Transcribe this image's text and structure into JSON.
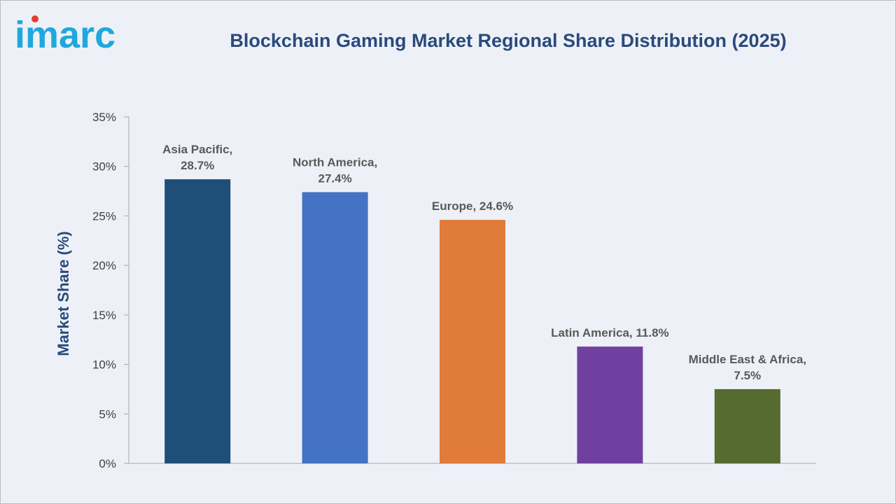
{
  "logo": {
    "text": "imarc"
  },
  "colors": {
    "title": "#2a4a7b",
    "logo": "#1fa8dd",
    "logo_dot": "#e63a2e",
    "background": "#edf1f7"
  },
  "chart_data": {
    "type": "bar",
    "title": "Blockchain Gaming Market Regional Share Distribution (2025)",
    "xlabel": "",
    "ylabel": "Market Share (%)",
    "ylim": [
      0,
      35
    ],
    "yticks": [
      0,
      5,
      10,
      15,
      20,
      25,
      30,
      35
    ],
    "ytick_labels": [
      "0%",
      "5%",
      "10%",
      "15%",
      "20%",
      "25%",
      "30%",
      "35%"
    ],
    "grid": false,
    "legend": "none",
    "categories": [
      "Asia Pacific",
      "North America",
      "Europe",
      "Latin America",
      "Middle East & Africa"
    ],
    "values": [
      28.7,
      27.4,
      24.6,
      11.8,
      7.5
    ],
    "bar_colors": [
      "#1f4e79",
      "#4472c4",
      "#e07b39",
      "#7040a0",
      "#556b2f"
    ],
    "data_labels": [
      [
        "Asia Pacific,",
        "28.7%"
      ],
      [
        "North America,",
        "27.4%"
      ],
      [
        "Europe, 24.6%"
      ],
      [
        "Latin America, 11.8%"
      ],
      [
        "Middle East & Africa,",
        "7.5%"
      ]
    ]
  }
}
